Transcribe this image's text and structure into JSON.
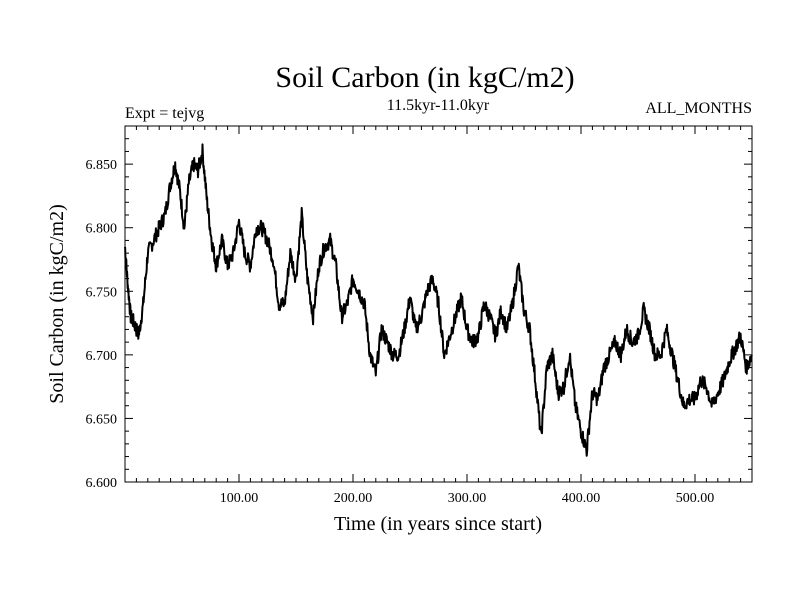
{
  "chart_data": {
    "type": "line",
    "title": "Soil Carbon (in kgC/m2)",
    "subtitle": "11.5kyr-11.0kyr",
    "left_note": "Expt = tejvg",
    "right_note": "ALL_MONTHS",
    "xlabel": "Time (in years since start)",
    "ylabel": "Soil Carbon (in kgC/m2)",
    "xlim": [
      0,
      550
    ],
    "ylim": [
      6.6,
      6.88
    ],
    "x_ticks": [
      100,
      200,
      300,
      400,
      500
    ],
    "x_tick_labels": [
      "100.00",
      "200.00",
      "300.00",
      "400.00",
      "500.00"
    ],
    "y_ticks": [
      6.6,
      6.65,
      6.7,
      6.75,
      6.8,
      6.85
    ],
    "y_tick_labels": [
      "6.600",
      "6.650",
      "6.700",
      "6.750",
      "6.800",
      "6.850"
    ],
    "grid": false,
    "series": [
      {
        "color": "#000000",
        "x": [
          0,
          2,
          5,
          8,
          12,
          16,
          20,
          25,
          30,
          35,
          40,
          44,
          48,
          52,
          56,
          60,
          64,
          68,
          72,
          76,
          80,
          85,
          90,
          95,
          100,
          105,
          110,
          115,
          120,
          125,
          130,
          135,
          140,
          145,
          150,
          155,
          160,
          165,
          170,
          175,
          180,
          185,
          190,
          195,
          200,
          205,
          210,
          215,
          220,
          225,
          230,
          235,
          240,
          245,
          250,
          255,
          260,
          265,
          270,
          275,
          280,
          285,
          290,
          295,
          300,
          305,
          310,
          315,
          320,
          325,
          330,
          335,
          340,
          345,
          350,
          355,
          360,
          365,
          370,
          375,
          380,
          385,
          390,
          395,
          400,
          405,
          410,
          415,
          420,
          425,
          430,
          435,
          440,
          445,
          450,
          455,
          460,
          465,
          470,
          475,
          480,
          485,
          490,
          495,
          500,
          505,
          510,
          515,
          520,
          525,
          530,
          535,
          540,
          545,
          550
        ],
        "values": [
          6.785,
          6.76,
          6.73,
          6.725,
          6.715,
          6.74,
          6.78,
          6.79,
          6.8,
          6.81,
          6.835,
          6.85,
          6.83,
          6.8,
          6.835,
          6.85,
          6.845,
          6.86,
          6.82,
          6.79,
          6.77,
          6.79,
          6.77,
          6.78,
          6.805,
          6.78,
          6.77,
          6.8,
          6.8,
          6.79,
          6.775,
          6.74,
          6.74,
          6.78,
          6.76,
          6.81,
          6.76,
          6.73,
          6.77,
          6.785,
          6.79,
          6.77,
          6.73,
          6.74,
          6.76,
          6.75,
          6.74,
          6.7,
          6.685,
          6.72,
          6.71,
          6.7,
          6.7,
          6.72,
          6.745,
          6.72,
          6.73,
          6.75,
          6.76,
          6.74,
          6.7,
          6.715,
          6.73,
          6.745,
          6.72,
          6.71,
          6.715,
          6.74,
          6.73,
          6.715,
          6.735,
          6.72,
          6.74,
          6.77,
          6.735,
          6.72,
          6.68,
          6.635,
          6.69,
          6.7,
          6.67,
          6.675,
          6.7,
          6.66,
          6.64,
          6.625,
          6.67,
          6.665,
          6.69,
          6.7,
          6.71,
          6.7,
          6.72,
          6.71,
          6.715,
          6.735,
          6.72,
          6.7,
          6.7,
          6.72,
          6.7,
          6.68,
          6.66,
          6.665,
          6.665,
          6.68,
          6.675,
          6.66,
          6.67,
          6.68,
          6.695,
          6.705,
          6.715,
          6.69,
          6.7
        ]
      }
    ]
  }
}
